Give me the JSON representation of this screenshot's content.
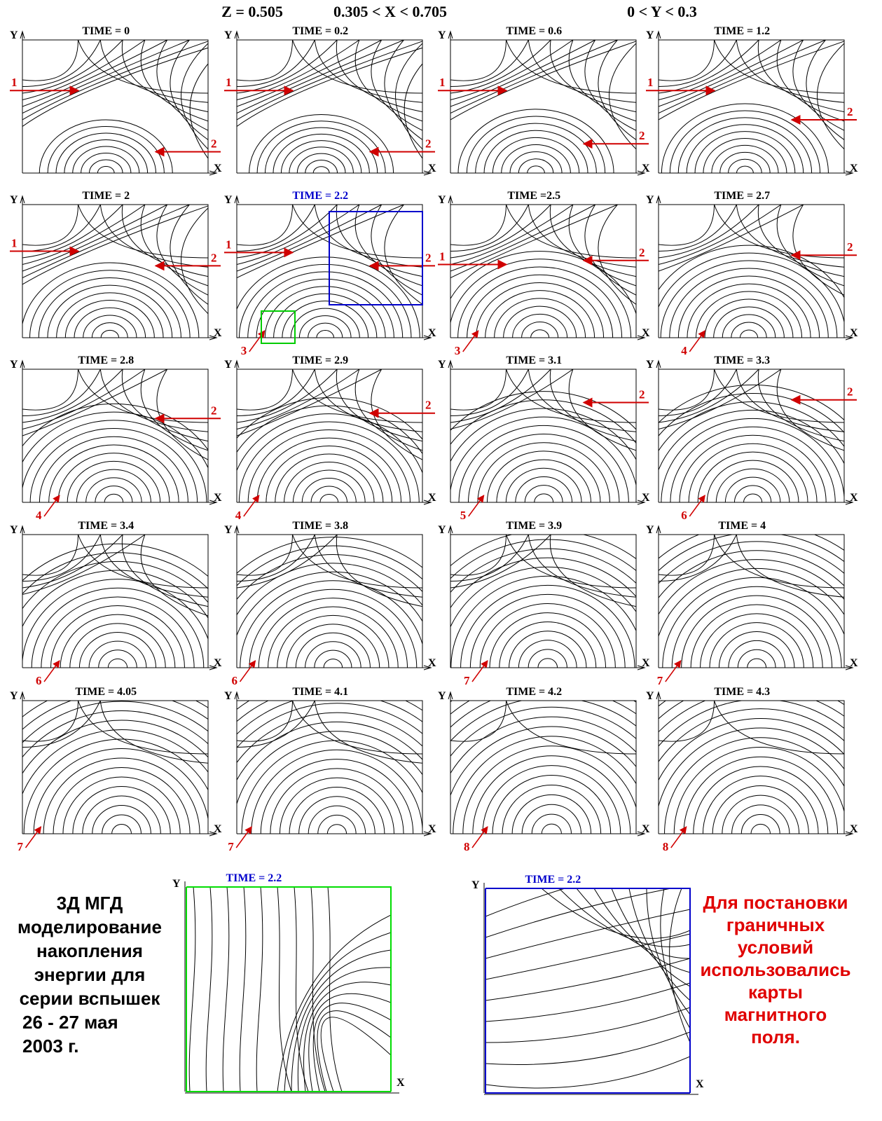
{
  "header": {
    "z": "Z = 0.505",
    "x_range": "0.305 < X < 0.705",
    "y_range": "0 < Y < 0.3"
  },
  "axis_x": "X",
  "axis_y": "Y",
  "panels": [
    {
      "title": "TIME = 0",
      "markers": [
        "1",
        "2"
      ]
    },
    {
      "title": "TIME = 0.2",
      "markers": [
        "1",
        "2"
      ]
    },
    {
      "title": "TIME = 0.6",
      "markers": [
        "1",
        "2"
      ]
    },
    {
      "title": "TIME = 1.2",
      "markers": [
        "1",
        "2"
      ]
    },
    {
      "title": "TIME = 2",
      "markers": [
        "1",
        "2"
      ]
    },
    {
      "title": "TIME = 2.2",
      "markers": [
        "1",
        "2",
        "3"
      ]
    },
    {
      "title": "TIME =2.5",
      "markers": [
        "1",
        "2",
        "3"
      ]
    },
    {
      "title": "TIME = 2.7",
      "markers": [
        "2",
        "4"
      ]
    },
    {
      "title": "TIME = 2.8",
      "markers": [
        "2",
        "4"
      ]
    },
    {
      "title": "TIME = 2.9",
      "markers": [
        "2",
        "4"
      ]
    },
    {
      "title": "TIME = 3.1",
      "markers": [
        "2",
        "5"
      ]
    },
    {
      "title": "TIME = 3.3",
      "markers": [
        "2",
        "6"
      ]
    },
    {
      "title": "TIME = 3.4",
      "markers": [
        "6"
      ]
    },
    {
      "title": "TIME = 3.8",
      "markers": [
        "6"
      ]
    },
    {
      "title": "TIME = 3.9",
      "markers": [
        "7"
      ]
    },
    {
      "title": "TIME = 4",
      "markers": [
        "7"
      ]
    },
    {
      "title": "TIME = 4.05",
      "markers": [
        "7"
      ]
    },
    {
      "title": "TIME = 4.1",
      "markers": [
        "7"
      ]
    },
    {
      "title": "TIME = 4.2",
      "markers": [
        "8"
      ]
    },
    {
      "title": "TIME = 4.3",
      "markers": [
        "8"
      ]
    }
  ],
  "zoom_panels": [
    {
      "title": "TIME = 2.2"
    },
    {
      "title": "TIME = 2.2"
    }
  ],
  "left_caption": [
    "3Д МГД",
    "моделирование",
    "накопления",
    "энергии для",
    "серии вспышек",
    "26 - 27 мая",
    "2003 г."
  ],
  "right_caption": [
    "Для постановки",
    "граничных",
    "условий",
    "использовались",
    "карты",
    "магнитного",
    "поля."
  ]
}
